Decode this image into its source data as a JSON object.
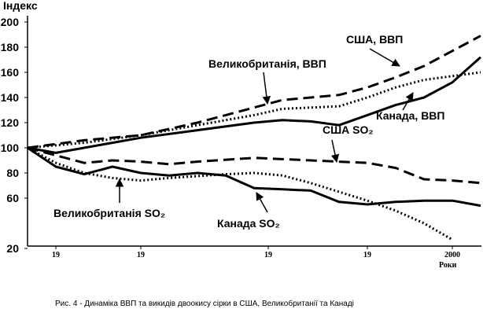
{
  "chart_data": {
    "type": "line",
    "y_label": "Індекс",
    "x_label": "Роки",
    "caption": "Рис. 4 - Динаміка ВВП та викидів двоокису сірки в США, Великобританії та Канаді",
    "ylim": [
      20,
      200
    ],
    "yticks": [
      20,
      60,
      80,
      100,
      120,
      140,
      160,
      180,
      200
    ],
    "xlim": [
      1970,
      2002
    ],
    "xticks": [
      {
        "value": 1972,
        "label": "19"
      },
      {
        "value": 1978,
        "label": "19"
      },
      {
        "value": 1987,
        "label": "19"
      },
      {
        "value": 1994,
        "label": "19"
      },
      2000
    ],
    "series": [
      {
        "name": "США, ВВП",
        "color": "#000000",
        "style": "dashed",
        "x": [
          1970,
          1974,
          1978,
          1982,
          1986,
          1988,
          1990,
          1992,
          1994,
          1996,
          1998,
          2000,
          2002
        ],
        "values": [
          100,
          106,
          110,
          120,
          132,
          138,
          140,
          142,
          148,
          156,
          165,
          177,
          189
        ]
      },
      {
        "name": "Великобританія, ВВП",
        "color": "#000000",
        "style": "dotted",
        "x": [
          1970,
          1974,
          1978,
          1982,
          1986,
          1988,
          1990,
          1992,
          1994,
          1996,
          1998,
          2000,
          2002
        ],
        "values": [
          100,
          104,
          110,
          118,
          126,
          131,
          132,
          133,
          140,
          148,
          154,
          157,
          160
        ]
      },
      {
        "name": "Канада, ВВП",
        "color": "#000000",
        "style": "solid",
        "x": [
          1970,
          1972,
          1974,
          1978,
          1982,
          1986,
          1988,
          1990,
          1992,
          1994,
          1996,
          1998,
          2000,
          2002
        ],
        "values": [
          100,
          96,
          100,
          108,
          114,
          120,
          122,
          121,
          118,
          126,
          134,
          140,
          152,
          172
        ]
      },
      {
        "name": "США SO₂",
        "color": "#000000",
        "style": "dashed",
        "x": [
          1970,
          1972,
          1974,
          1976,
          1978,
          1980,
          1982,
          1986,
          1990,
          1994,
          1996,
          1998,
          2000,
          2002
        ],
        "values": [
          100,
          94,
          88,
          90,
          89,
          87,
          89,
          92,
          90,
          88,
          84,
          75,
          74,
          72
        ]
      },
      {
        "name": "Великобританія SO₂",
        "color": "#000000",
        "style": "dotted",
        "x": [
          1970,
          1972,
          1974,
          1976,
          1978,
          1980,
          1984,
          1986,
          1988,
          1990,
          1992,
          1994,
          1996,
          1998,
          2000
        ],
        "values": [
          100,
          88,
          80,
          76,
          74,
          76,
          79,
          80,
          78,
          72,
          65,
          58,
          50,
          40,
          27
        ]
      },
      {
        "name": "Канада SO₂",
        "color": "#000000",
        "style": "solid",
        "x": [
          1970,
          1972,
          1974,
          1976,
          1978,
          1980,
          1982,
          1984,
          1986,
          1988,
          1990,
          1992,
          1994,
          1996,
          1998,
          2000,
          2002
        ],
        "values": [
          100,
          85,
          79,
          85,
          80,
          78,
          80,
          78,
          68,
          67,
          66,
          57,
          55,
          57,
          58,
          58,
          54
        ]
      }
    ]
  }
}
